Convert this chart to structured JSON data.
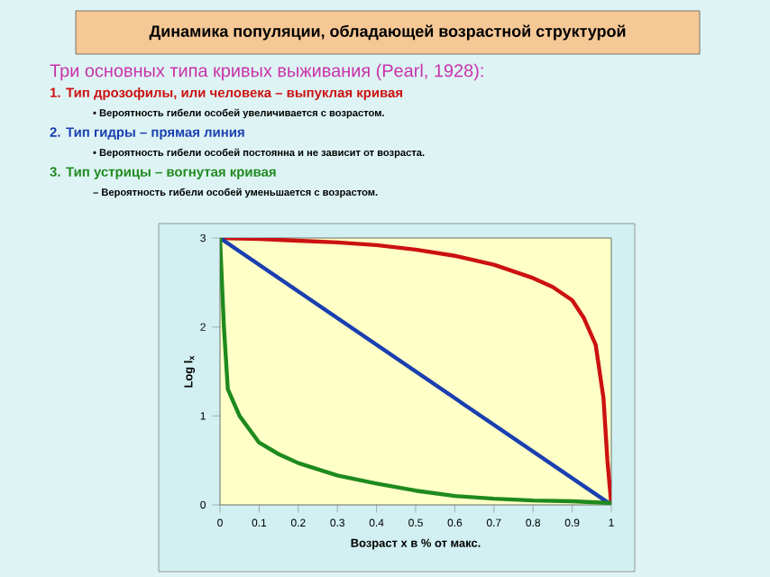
{
  "chart_data": {
    "type": "line",
    "title": "Динамика популяции, обладающей возрастной структурой",
    "subtitle": "Три основных типа кривых выживания (Pearl, 1928):",
    "annotations": [
      "1.   Тип дрозофилы, или человека – выпуклая кривая",
      "•   Вероятность гибели особей увеличивается с возрастом.",
      "2.   Тип гидры – прямая линия",
      "•   Вероятность гибели особей постоянна и не зависит от возраста.",
      "3.   Тип устрицы – вогнутая кривая",
      "–   Вероятность гибели особей уменьшается с возрастом."
    ],
    "xlabel": "Возраст x в % от макс.",
    "ylabel": "Log l$_{x}$",
    "xlim": [
      0,
      1
    ],
    "ylim": [
      0,
      3
    ],
    "xticks": [
      0,
      0.1,
      0.2,
      0.3,
      0.4,
      0.5,
      0.6,
      0.7,
      0.8,
      0.9,
      1
    ],
    "yticks": [
      0,
      1,
      2,
      3
    ],
    "grid": false,
    "marker": "none",
    "line_style": "solid",
    "series": [
      {
        "color": "#cc1111",
        "x": [
          0,
          0.1,
          0.2,
          0.3,
          0.4,
          0.5,
          0.6,
          0.7,
          0.8,
          0.85,
          0.9,
          0.93,
          0.96,
          0.98,
          0.99,
          1
        ],
        "values": [
          3,
          2.99,
          2.97,
          2.95,
          2.92,
          2.87,
          2.8,
          2.7,
          2.55,
          2.45,
          2.3,
          2.1,
          1.8,
          1.2,
          0.5,
          0
        ]
      },
      {
        "color": "#1a3fb0",
        "x": [
          0,
          1
        ],
        "values": [
          3,
          0
        ]
      },
      {
        "color": "#1e8a1e",
        "x": [
          0,
          0.01,
          0.02,
          0.05,
          0.1,
          0.15,
          0.2,
          0.3,
          0.4,
          0.5,
          0.6,
          0.7,
          0.8,
          0.9,
          1
        ],
        "values": [
          3,
          2.0,
          1.3,
          1.0,
          0.7,
          0.57,
          0.47,
          0.33,
          0.24,
          0.16,
          0.1,
          0.07,
          0.05,
          0.04,
          0.02
        ]
      }
    ]
  }
}
